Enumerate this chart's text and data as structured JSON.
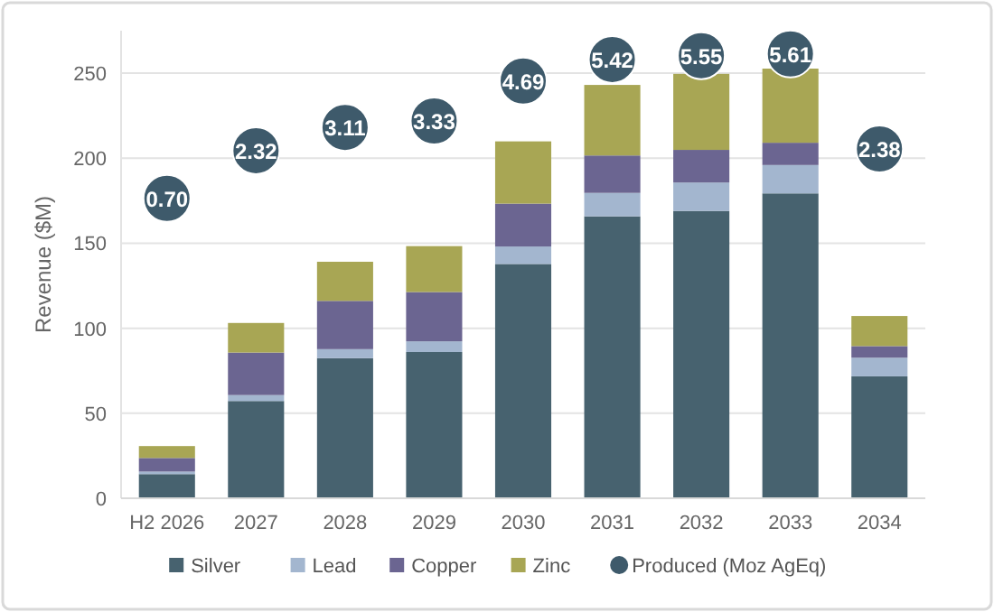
{
  "chart_data": {
    "type": "bar",
    "stacked": true,
    "ylabel": "Revenue ($M)",
    "categories": [
      "H2 2026",
      "2027",
      "2028",
      "2029",
      "2030",
      "2031",
      "2032",
      "2033",
      "2034"
    ],
    "series": [
      {
        "name": "Silver",
        "color": "#47626f",
        "values": [
          14.2,
          57.2,
          82.4,
          86,
          137.8,
          165.8,
          169,
          179.3,
          71.7
        ]
      },
      {
        "name": "Lead",
        "color": "#a3b6cf",
        "values": [
          1.5,
          3.5,
          5.3,
          6.3,
          10.3,
          13.8,
          16.7,
          16.7,
          11
        ]
      },
      {
        "name": "Copper",
        "color": "#6b6591",
        "values": [
          8,
          25,
          28.4,
          29,
          25.2,
          22,
          19.2,
          13.1,
          6.8
        ]
      },
      {
        "name": "Zinc",
        "color": "#a8a654",
        "values": [
          7,
          17.4,
          23,
          27,
          36.6,
          41.5,
          44.7,
          43.6,
          17.7
        ]
      },
      {
        "name": "Produced (Moz AgEq)",
        "type": "scatter",
        "axis": "y2",
        "marker": "circle",
        "color": "#3e5a6b",
        "values": [
          0.7,
          2.32,
          3.11,
          3.33,
          4.69,
          5.42,
          5.55,
          5.61,
          2.38
        ],
        "value_labels": [
          "0.70",
          "2.32",
          "3.11",
          "3.33",
          "4.69",
          "5.42",
          "5.55",
          "5.61",
          "2.38"
        ]
      }
    ],
    "ylim": [
      0,
      275
    ],
    "yticks": [
      0,
      50,
      100,
      150,
      200,
      250
    ],
    "y2lim": [
      -9.5,
      6.4
    ],
    "grid": "y",
    "legend": "bottom"
  }
}
